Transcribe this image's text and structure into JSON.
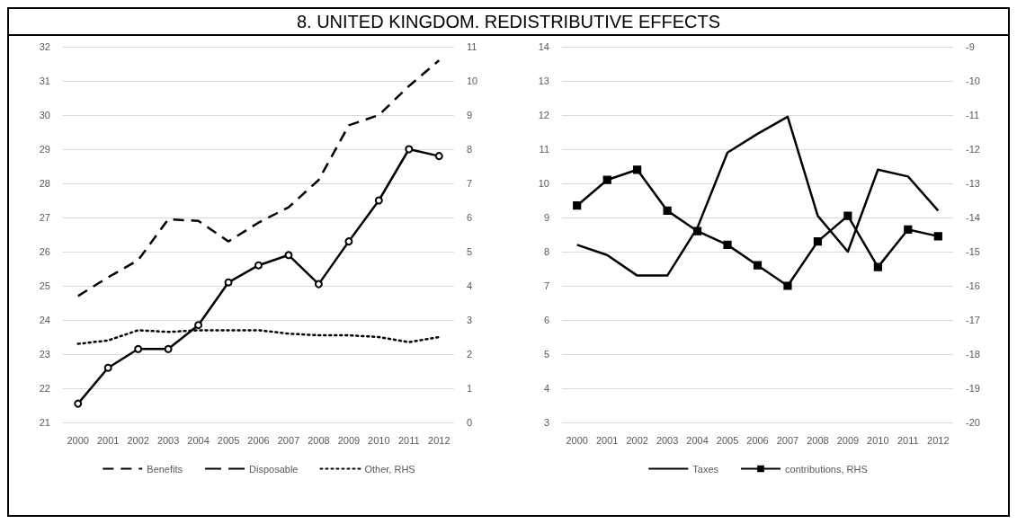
{
  "chart_data": [
    {
      "type": "line",
      "title": "8. UNITED KINGDOM. REDISTRIBUTIVE EFFECTS",
      "categories": [
        "2000",
        "2001",
        "2002",
        "2003",
        "2004",
        "2005",
        "2006",
        "2007",
        "2008",
        "2009",
        "2010",
        "2011",
        "2012"
      ],
      "ylim": [
        21,
        32
      ],
      "yticks": [
        21,
        22,
        23,
        24,
        25,
        26,
        27,
        28,
        29,
        30,
        31,
        32
      ],
      "y2lim": [
        0,
        11
      ],
      "y2ticks": [
        0,
        1,
        2,
        3,
        4,
        5,
        6,
        7,
        8,
        9,
        10,
        11
      ],
      "grid": "y",
      "legend": "bottom",
      "series": [
        {
          "name": "Benefits",
          "color": "#000000",
          "line_style": "dashed",
          "marker": "none",
          "values": [
            24.7,
            25.25,
            25.75,
            26.95,
            26.9,
            26.3,
            26.85,
            27.3,
            28.1,
            29.7,
            30.0,
            30.85,
            31.6
          ]
        },
        {
          "name": "Disposable",
          "color": "#000000",
          "line_style": "solid",
          "marker": "circle",
          "values": [
            21.55,
            22.6,
            23.15,
            23.15,
            23.85,
            25.1,
            25.6,
            25.9,
            25.05,
            26.3,
            27.5,
            29.0,
            28.8
          ]
        },
        {
          "name": "Other, RHS",
          "color": "#000000",
          "line_style": "dotted",
          "marker": "none",
          "axis": "y2",
          "values": [
            2.3,
            2.4,
            2.7,
            2.65,
            2.7,
            2.7,
            2.7,
            2.6,
            2.55,
            2.55,
            2.5,
            2.35,
            2.5
          ]
        }
      ]
    },
    {
      "type": "line",
      "categories": [
        "2000",
        "2001",
        "2002",
        "2003",
        "2004",
        "2005",
        "2006",
        "2007",
        "2008",
        "2009",
        "2010",
        "2011",
        "2012"
      ],
      "ylim": [
        3,
        14
      ],
      "yticks": [
        3,
        4,
        5,
        6,
        7,
        8,
        9,
        10,
        11,
        12,
        13,
        14
      ],
      "y2lim": [
        -20,
        -9
      ],
      "y2ticks": [
        -20,
        -19,
        -18,
        -17,
        -16,
        -15,
        -14,
        -13,
        -12,
        -11,
        -10,
        -9
      ],
      "grid": "y",
      "legend": "bottom",
      "series": [
        {
          "name": "Taxes",
          "color": "#000000",
          "line_style": "solid",
          "marker": "none",
          "values": [
            8.2,
            7.9,
            7.3,
            7.3,
            8.7,
            10.9,
            11.45,
            11.95,
            9.05,
            8.0,
            10.4,
            10.2,
            9.2
          ]
        },
        {
          "name": "contributions, RHS",
          "color": "#000000",
          "line_style": "solid",
          "marker": "square",
          "axis": "y2",
          "values": [
            -13.65,
            -12.9,
            -12.6,
            -13.8,
            -14.4,
            -14.8,
            -15.4,
            -16.0,
            -14.7,
            -13.95,
            -15.45,
            -14.35,
            -14.55
          ]
        }
      ]
    }
  ]
}
